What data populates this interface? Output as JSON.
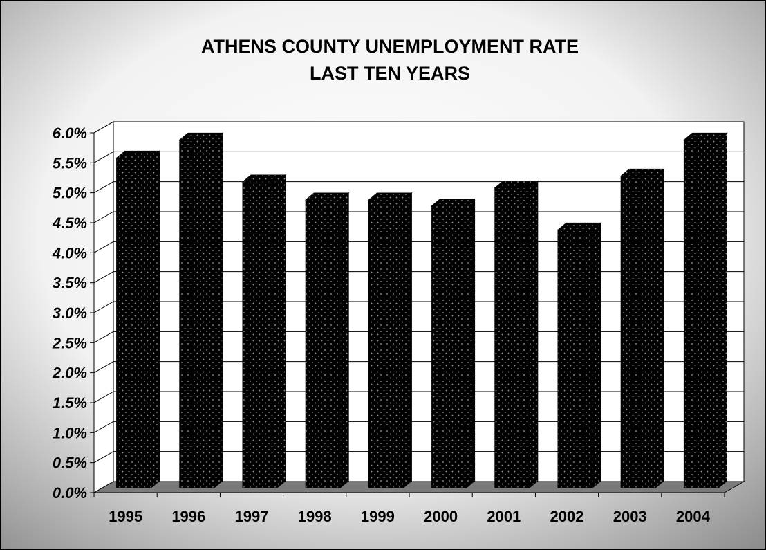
{
  "chart_data": {
    "type": "bar",
    "title": [
      "ATHENS COUNTY UNEMPLOYMENT RATE",
      "LAST TEN YEARS"
    ],
    "xlabel": "",
    "ylabel": "",
    "categories": [
      "1995",
      "1996",
      "1997",
      "1998",
      "1999",
      "2000",
      "2001",
      "2002",
      "2003",
      "2004"
    ],
    "values": [
      5.5,
      5.8,
      5.1,
      4.8,
      4.8,
      4.7,
      5.0,
      4.3,
      5.2,
      5.8
    ],
    "value_unit": "%",
    "ylim": [
      0,
      6
    ],
    "yticks": [
      "0.0%",
      "0.5%",
      "1.0%",
      "1.5%",
      "2.0%",
      "2.5%",
      "3.0%",
      "3.5%",
      "4.0%",
      "4.5%",
      "5.0%",
      "5.5%",
      "6.0%"
    ],
    "grid": true,
    "legend": "none",
    "style": "3d-column",
    "colors": {
      "bar": "#000000",
      "bar_dots": "#9a9a9a",
      "floor": "#7a7a7a",
      "gridline": "#000000"
    }
  }
}
